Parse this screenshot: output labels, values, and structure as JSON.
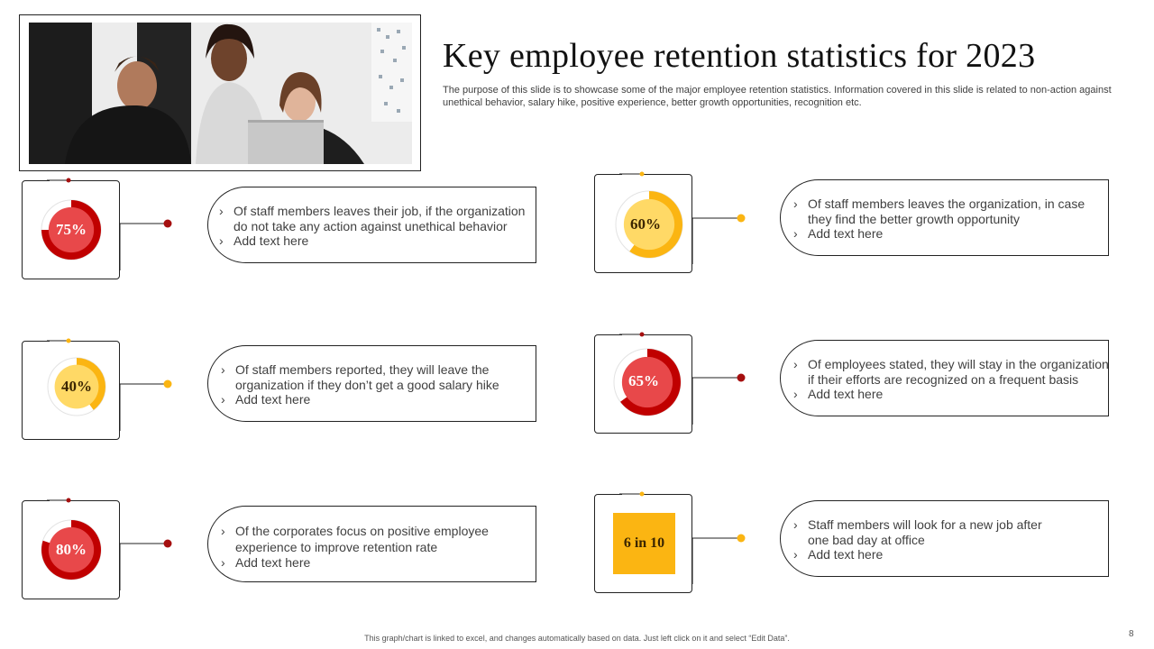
{
  "header": {
    "title": "Key employee retention statistics for 2023",
    "subtitle": "The purpose of this slide is to showcase some of the major employee retention statistics. Information covered in this slide is related to non-action against unethical behavior, salary hike, positive experience, better growth opportunities, recognition etc."
  },
  "colors": {
    "red": "#c00000",
    "red_light": "#e8484a",
    "yellow": "#fbb512",
    "yellow_light": "#ffd966"
  },
  "stats": [
    {
      "label": "75%",
      "value": 75,
      "color": "red",
      "bullets": [
        "Of staff members leaves their job, if the organization do not take any action against unethical behavior",
        "Add text here"
      ]
    },
    {
      "label": "40%",
      "value": 40,
      "color": "yellow",
      "bullets": [
        "Of staff members reported, they will leave the organization if they don’t get a good salary hike",
        "Add text here"
      ]
    },
    {
      "label": "80%",
      "value": 80,
      "color": "red",
      "bullets": [
        "Of the corporates focus on positive employee experience to improve retention rate",
        "Add text here"
      ]
    },
    {
      "label": "60%",
      "value": 60,
      "color": "yellow",
      "bullets": [
        "Of staff members leaves the organization, in case they find the better growth opportunity",
        "Add text here"
      ]
    },
    {
      "label": "65%",
      "value": 65,
      "color": "red",
      "bullets": [
        "Of employees stated, they will stay in the organization if their efforts are recognized on a frequent basis",
        "Add text here"
      ]
    },
    {
      "label": "6 in 10",
      "color": "yellow",
      "bullets": [
        "Staff members will look for a new job after one bad day at office",
        "Add text here"
      ]
    }
  ],
  "footer": {
    "note": "This graph/chart is linked to excel, and changes automatically based on data. Just left click on it and select “Edit Data”.",
    "page": "8"
  }
}
